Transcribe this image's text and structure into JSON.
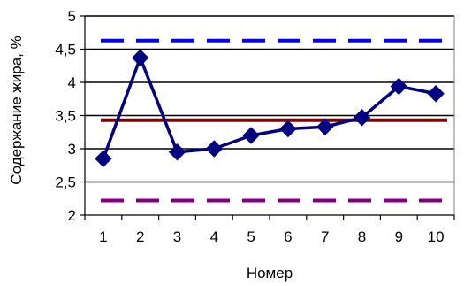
{
  "chart_data": {
    "type": "line",
    "title": "",
    "xlabel": "Номер",
    "ylabel": "Содержание жира, %",
    "categories": [
      "1",
      "2",
      "3",
      "4",
      "5",
      "6",
      "7",
      "8",
      "9",
      "10"
    ],
    "y_tick_labels": [
      "2",
      "2,5",
      "3",
      "3,5",
      "4",
      "4,5",
      "5"
    ],
    "ylim": [
      2,
      5
    ],
    "y_ticks": [
      2,
      2.5,
      3,
      3.5,
      4,
      4.5,
      5
    ],
    "grid": true,
    "legend": "none",
    "series": [
      {
        "values": [
          2.85,
          4.37,
          2.95,
          3.0,
          3.2,
          3.3,
          3.33,
          3.47,
          3.94,
          3.83
        ],
        "color": "#000080",
        "marker": "diamond"
      }
    ],
    "reference_lines": [
      {
        "y": 4.63,
        "style": "dashed",
        "color": "#0000ff"
      },
      {
        "y": 3.43,
        "style": "solid",
        "color": "#800000"
      },
      {
        "y": 2.22,
        "style": "dashed",
        "color": "#800080"
      }
    ]
  }
}
